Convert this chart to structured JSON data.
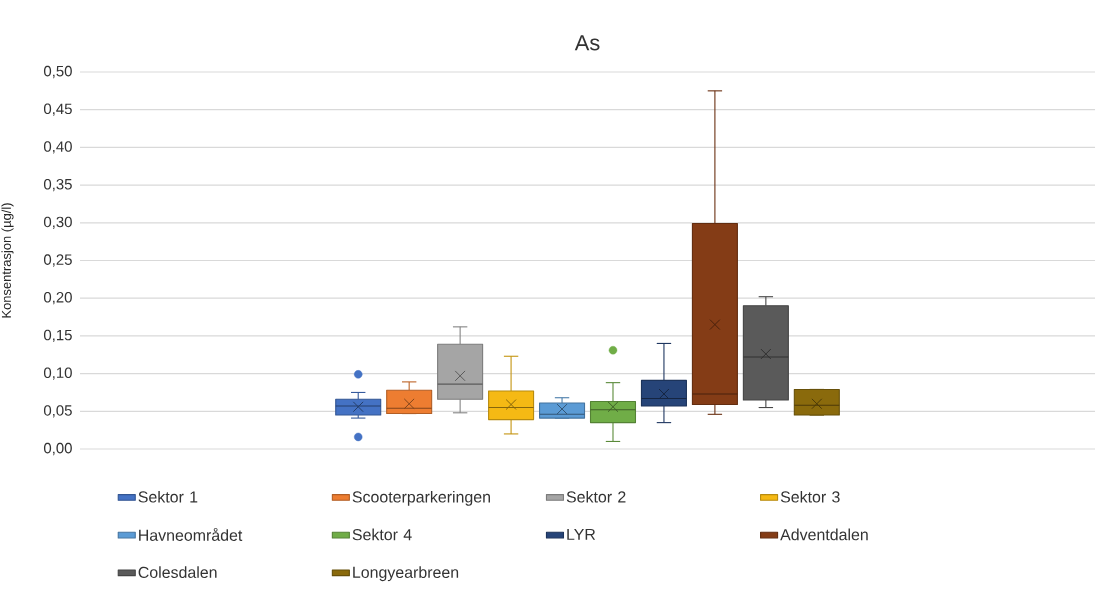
{
  "chart_data": {
    "type": "box",
    "title": "As",
    "ylabel": "Konsentrasjon (µg/l)",
    "categories": [
      null
    ],
    "series": [
      {
        "name": "Sektor 1",
        "color": "#4472c4",
        "boxes": [
          {
            "low": 0.041,
            "q1": 0.045,
            "median": 0.057,
            "q3": 0.066,
            "high": 0.075,
            "mean": 0.056,
            "outliers": [
              0.099,
              0.016
            ]
          }
        ]
      },
      {
        "name": "Scooterparkeringen",
        "color": "#ed7d31",
        "boxes": [
          {
            "low": 0.047,
            "q1": 0.047,
            "median": 0.054,
            "q3": 0.078,
            "high": 0.089,
            "mean": 0.06
          }
        ]
      },
      {
        "name": "Sektor 2",
        "color": "#a5a5a5",
        "boxes": [
          {
            "low": 0.048,
            "q1": 0.066,
            "median": 0.086,
            "q3": 0.139,
            "high": 0.162,
            "mean": 0.097
          }
        ]
      },
      {
        "name": "Sektor 3",
        "color": "#f5b914",
        "boxes": [
          {
            "low": 0.02,
            "q1": 0.039,
            "median": 0.055,
            "q3": 0.077,
            "high": 0.123,
            "mean": 0.059
          }
        ]
      },
      {
        "name": "Havneområdet",
        "color": "#5b9bd5",
        "boxes": [
          {
            "low": 0.041,
            "q1": 0.041,
            "median": 0.046,
            "q3": 0.061,
            "high": 0.068,
            "mean": 0.053
          }
        ]
      },
      {
        "name": "Sektor 4",
        "color": "#70ad47",
        "boxes": [
          {
            "low": 0.01,
            "q1": 0.035,
            "median": 0.052,
            "q3": 0.063,
            "high": 0.088,
            "mean": 0.056,
            "outliers": [
              0.131
            ]
          }
        ]
      },
      {
        "name": "LYR",
        "color": "#264478",
        "boxes": [
          {
            "low": 0.035,
            "q1": 0.057,
            "median": 0.067,
            "q3": 0.091,
            "high": 0.14,
            "mean": 0.073
          }
        ]
      },
      {
        "name": "Adventdalen",
        "color": "#843c16",
        "boxes": [
          {
            "low": 0.046,
            "q1": 0.059,
            "median": 0.073,
            "q3": 0.299,
            "high": 0.475,
            "mean": 0.165
          }
        ]
      },
      {
        "name": "Colesdalen",
        "color": "#5a5a5a",
        "boxes": [
          {
            "low": 0.055,
            "q1": 0.065,
            "median": 0.122,
            "q3": 0.19,
            "high": 0.202,
            "mean": 0.126
          }
        ]
      },
      {
        "name": "Longyearbreen",
        "color": "#8a6a0c",
        "boxes": [
          {
            "low": 0.045,
            "q1": 0.045,
            "median": 0.058,
            "q3": 0.079,
            "high": 0.079,
            "mean": 0.06
          }
        ]
      }
    ],
    "ylim": [
      0,
      0.5
    ],
    "yticks": [
      {
        "value": 0,
        "label": "0,00"
      },
      {
        "value": 0.05,
        "label": "0,05"
      },
      {
        "value": 0.1,
        "label": "0,10"
      },
      {
        "value": 0.15,
        "label": "0,15"
      },
      {
        "value": 0.2,
        "label": "0,20"
      },
      {
        "value": 0.25,
        "label": "0,25"
      },
      {
        "value": 0.3,
        "label": "0,30"
      },
      {
        "value": 0.35,
        "label": "0,35"
      },
      {
        "value": 0.4,
        "label": "0,40"
      },
      {
        "value": 0.45,
        "label": "0,45"
      },
      {
        "value": 0.5,
        "label": "0,50"
      }
    ],
    "grid": "y",
    "legend": "bottom",
    "tick_labels": "y"
  }
}
